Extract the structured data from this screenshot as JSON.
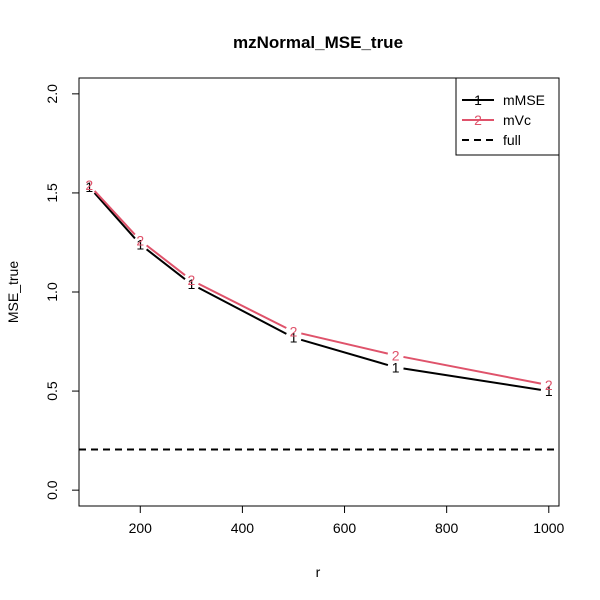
{
  "chart_data": {
    "type": "line",
    "title": "mzNormal_MSE_true",
    "xlabel": "r",
    "ylabel": "MSE_true",
    "xlim": [
      80,
      1020
    ],
    "ylim": [
      -0.08,
      2.08
    ],
    "x_ticks": [
      200,
      400,
      600,
      800,
      1000
    ],
    "y_ticks": [
      0.0,
      0.5,
      1.0,
      1.5,
      2.0
    ],
    "x_tick_labels": [
      "200",
      "400",
      "600",
      "800",
      "1000"
    ],
    "y_tick_labels": [
      "0.0",
      "0.5",
      "1.0",
      "1.5",
      "2.0"
    ],
    "x": [
      100,
      200,
      300,
      500,
      700,
      1000
    ],
    "series": [
      {
        "name": "mMSE",
        "marker": "1",
        "color": "#000000",
        "values": [
          1.53,
          1.24,
          1.04,
          0.77,
          0.62,
          0.5
        ]
      },
      {
        "name": "mVc",
        "marker": "2",
        "color": "#DF536B",
        "values": [
          1.54,
          1.26,
          1.06,
          0.8,
          0.68,
          0.53
        ]
      }
    ],
    "reference_line": {
      "name": "full",
      "style": "dashed",
      "color": "#000000",
      "value": 0.205
    },
    "legend": {
      "placement": "top-right",
      "entries": [
        {
          "label": "mMSE",
          "marker": "1",
          "color": "#000000",
          "line": "solid"
        },
        {
          "label": "mVc",
          "marker": "2",
          "color": "#DF536B",
          "line": "solid"
        },
        {
          "label": "full",
          "marker": "",
          "color": "#000000",
          "line": "dashed"
        }
      ]
    },
    "grid": false
  }
}
